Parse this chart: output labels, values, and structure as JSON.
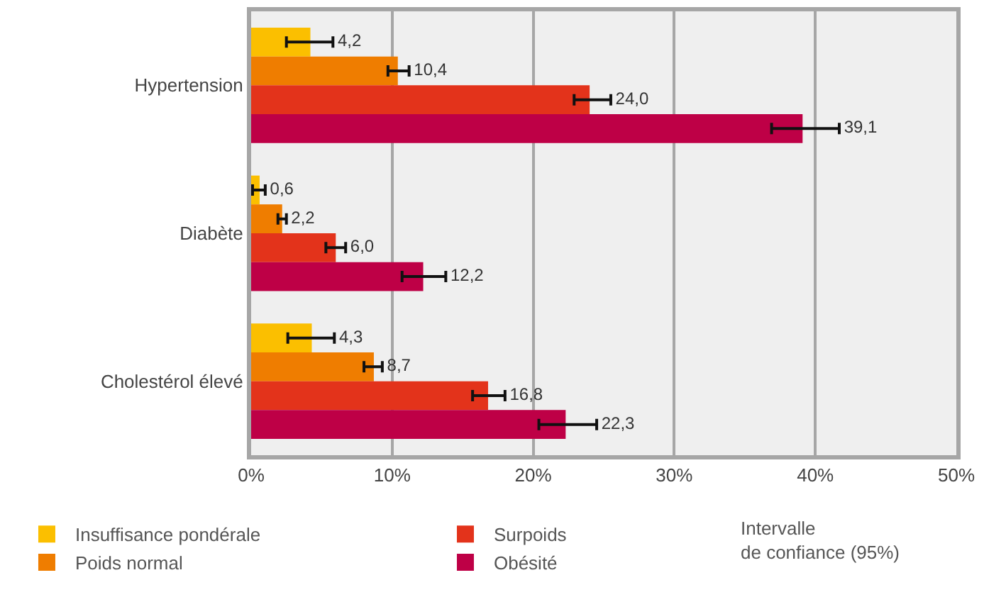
{
  "chart_data": {
    "type": "bar",
    "orientation": "horizontal",
    "categories": [
      "Hypertension",
      "Diabète",
      "Cholestérol élevé"
    ],
    "series": [
      {
        "name": "Insuffisance pondérale",
        "color": "#fbbf00",
        "values": [
          4.2,
          0.6,
          4.3
        ],
        "value_labels": [
          "4,2",
          "0,6",
          "4,3"
        ],
        "errors": [
          [
            2.5,
            5.8
          ],
          [
            0.1,
            1.0
          ],
          [
            2.6,
            5.9
          ]
        ]
      },
      {
        "name": "Poids normal",
        "color": "#ef7d00",
        "values": [
          10.4,
          2.2,
          8.7
        ],
        "value_labels": [
          "10,4",
          "2,2",
          "8,7"
        ],
        "errors": [
          [
            9.7,
            11.2
          ],
          [
            1.9,
            2.5
          ],
          [
            8.0,
            9.3
          ]
        ]
      },
      {
        "name": "Surpoids",
        "color": "#e3331b",
        "values": [
          24.0,
          6.0,
          16.8
        ],
        "value_labels": [
          "24,0",
          "6,0",
          "16,8"
        ],
        "errors": [
          [
            22.9,
            25.5
          ],
          [
            5.3,
            6.7
          ],
          [
            15.7,
            18.0
          ]
        ]
      },
      {
        "name": "Obésité",
        "color": "#be0046",
        "values": [
          39.1,
          12.2,
          22.3
        ],
        "value_labels": [
          "39,1",
          "12,2",
          "22,3"
        ],
        "errors": [
          [
            36.9,
            41.7
          ],
          [
            10.7,
            13.8
          ],
          [
            20.4,
            24.5
          ]
        ]
      }
    ],
    "xlim": [
      0,
      50
    ],
    "xticks": [
      {
        "value": 0,
        "label": "0%"
      },
      {
        "value": 10,
        "label": "10%"
      },
      {
        "value": 20,
        "label": "20%"
      },
      {
        "value": 30,
        "label": "30%"
      },
      {
        "value": 40,
        "label": "40%"
      },
      {
        "value": 50,
        "label": "50%"
      }
    ],
    "grid": "x",
    "legend": "bottom",
    "annotations": [
      "Intervalle\nde confiance (95%)"
    ]
  }
}
